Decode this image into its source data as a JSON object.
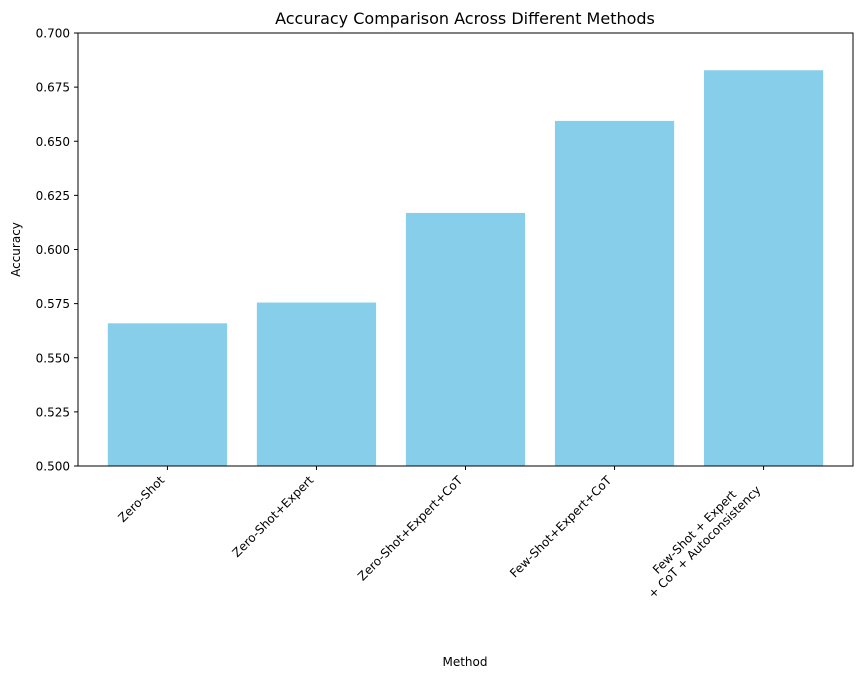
{
  "chart_data": {
    "type": "bar",
    "title": "Accuracy Comparison Across Different Methods",
    "xlabel": "Method",
    "ylabel": "Accuracy",
    "categories": [
      [
        "Zero-Shot"
      ],
      [
        "Zero-Shot+Expert"
      ],
      [
        "Zero-Shot+Expert+CoT"
      ],
      [
        "Few-Shot+Expert+CoT"
      ],
      [
        "Few-Shot + Expert",
        "+ CoT + Autoconsistency"
      ]
    ],
    "values": [
      0.5659,
      0.5755,
      0.6169,
      0.6594,
      0.6828
    ],
    "ylim": [
      0.5,
      0.7
    ],
    "yticks": [
      0.5,
      0.525,
      0.55,
      0.575,
      0.6,
      0.625,
      0.65,
      0.675,
      0.7
    ],
    "ytick_labels": [
      "0.500",
      "0.525",
      "0.550",
      "0.575",
      "0.600",
      "0.625",
      "0.650",
      "0.675",
      "0.700"
    ],
    "grid": false,
    "legend": "none",
    "bar_color": "#87CEEB",
    "xtick_rotation": 45
  }
}
